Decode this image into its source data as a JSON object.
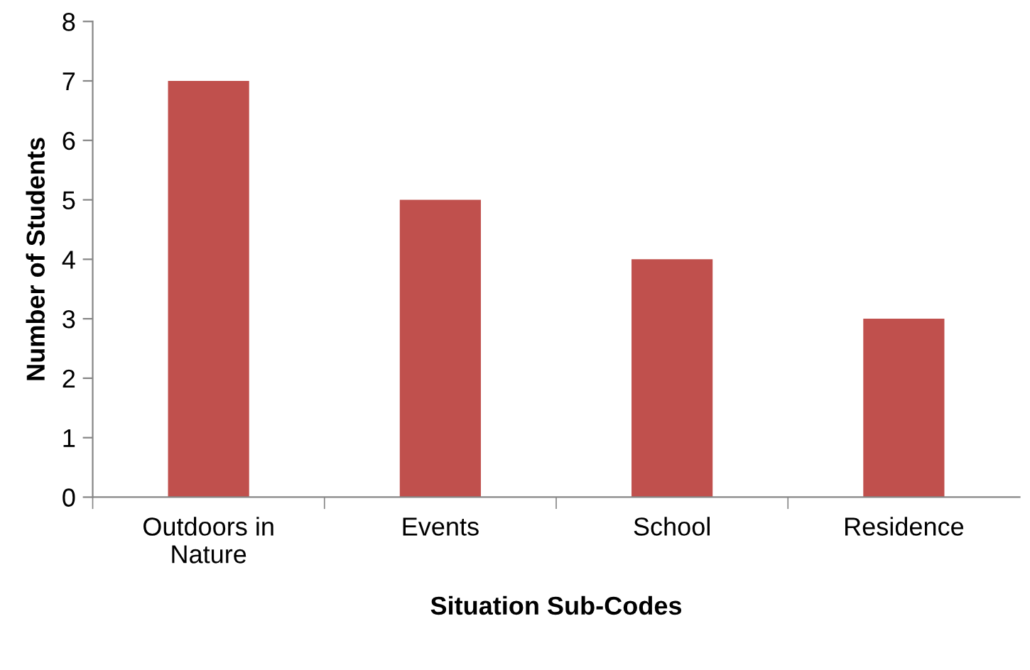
{
  "chart_data": {
    "type": "bar",
    "xlabel": "Situation Sub-Codes",
    "ylabel": "Number of Students",
    "categories": [
      "Outdoors in\nNature",
      "Events",
      "School",
      "Residence"
    ],
    "values": [
      7,
      5,
      4,
      3
    ],
    "color": "#c0504d",
    "ylim": [
      0,
      8
    ],
    "yticks": [
      0,
      1,
      2,
      3,
      4,
      5,
      6,
      7,
      8
    ],
    "grid": false,
    "legend": false
  }
}
